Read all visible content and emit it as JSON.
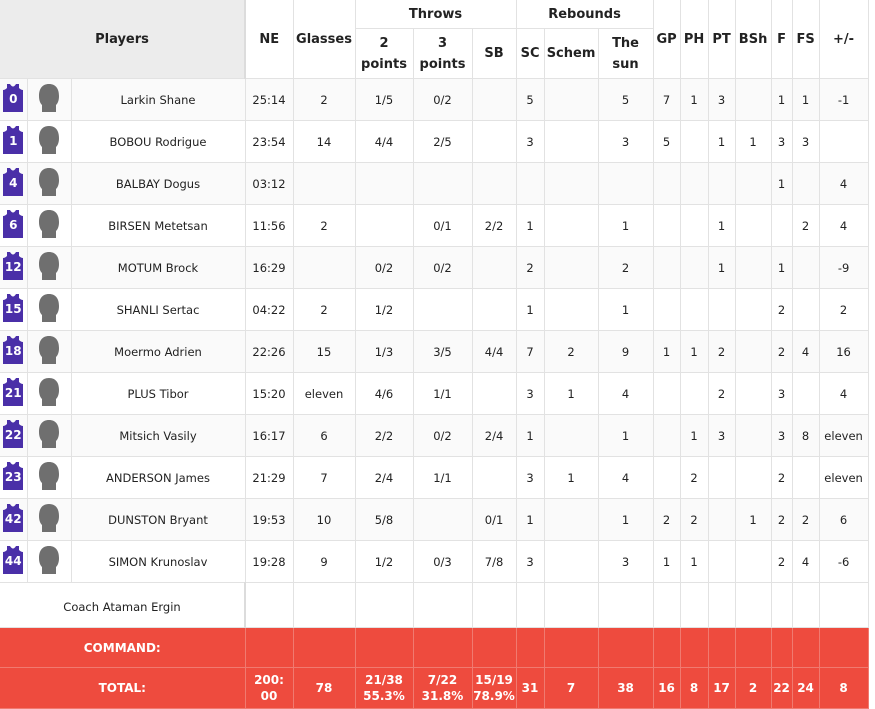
{
  "header": {
    "players": "Players",
    "ne": "NE",
    "glasses": "Glasses",
    "throws": "Throws",
    "two_points": "2 points",
    "three_points": "3 points",
    "sb": "SB",
    "rebounds": "Rebounds",
    "sc": "SC",
    "schem": "Schem",
    "the_sun": "The sun",
    "gp": "GP",
    "ph": "PH",
    "pt": "PT",
    "bsh": "BSh",
    "f": "F",
    "fs": "FS",
    "pm": "+/-"
  },
  "colors": {
    "jersey": "#4a2fa8",
    "team_row": "#ee4b3e",
    "avatar": "#6f6f6f"
  },
  "players": [
    {
      "num": "0",
      "name": "Larkin Shane",
      "ne": "25:14",
      "glasses": "2",
      "p2": "1/5",
      "p3": "0/2",
      "sb": "",
      "sc": "5",
      "schem": "",
      "sun": "5",
      "gp": "7",
      "ph": "1",
      "pt": "3",
      "bsh": "",
      "f": "1",
      "fs": "1",
      "pm": "-1"
    },
    {
      "num": "1",
      "name": "BOBOU Rodrigue",
      "ne": "23:54",
      "glasses": "14",
      "p2": "4/4",
      "p3": "2/5",
      "sb": "",
      "sc": "3",
      "schem": "",
      "sun": "3",
      "gp": "5",
      "ph": "",
      "pt": "1",
      "bsh": "1",
      "f": "3",
      "fs": "3",
      "pm": ""
    },
    {
      "num": "4",
      "name": "BALBAY Dogus",
      "ne": "03:12",
      "glasses": "",
      "p2": "",
      "p3": "",
      "sb": "",
      "sc": "",
      "schem": "",
      "sun": "",
      "gp": "",
      "ph": "",
      "pt": "",
      "bsh": "",
      "f": "1",
      "fs": "",
      "pm": "4"
    },
    {
      "num": "6",
      "name": "BIRSEN Metetsan",
      "ne": "11:56",
      "glasses": "2",
      "p2": "",
      "p3": "0/1",
      "sb": "2/2",
      "sc": "1",
      "schem": "",
      "sun": "1",
      "gp": "",
      "ph": "",
      "pt": "1",
      "bsh": "",
      "f": "",
      "fs": "2",
      "pm": "4"
    },
    {
      "num": "12",
      "name": "MOTUM Brock",
      "ne": "16:29",
      "glasses": "",
      "p2": "0/2",
      "p3": "0/2",
      "sb": "",
      "sc": "2",
      "schem": "",
      "sun": "2",
      "gp": "",
      "ph": "",
      "pt": "1",
      "bsh": "",
      "f": "1",
      "fs": "",
      "pm": "-9"
    },
    {
      "num": "15",
      "name": "SHANLI Sertac",
      "ne": "04:22",
      "glasses": "2",
      "p2": "1/2",
      "p3": "",
      "sb": "",
      "sc": "1",
      "schem": "",
      "sun": "1",
      "gp": "",
      "ph": "",
      "pt": "",
      "bsh": "",
      "f": "2",
      "fs": "",
      "pm": "2"
    },
    {
      "num": "18",
      "name": "Moermo Adrien",
      "ne": "22:26",
      "glasses": "15",
      "p2": "1/3",
      "p3": "3/5",
      "sb": "4/4",
      "sc": "7",
      "schem": "2",
      "sun": "9",
      "gp": "1",
      "ph": "1",
      "pt": "2",
      "bsh": "",
      "f": "2",
      "fs": "4",
      "pm": "16"
    },
    {
      "num": "21",
      "name": "PLUS Tibor",
      "ne": "15:20",
      "glasses": "eleven",
      "p2": "4/6",
      "p3": "1/1",
      "sb": "",
      "sc": "3",
      "schem": "1",
      "sun": "4",
      "gp": "",
      "ph": "",
      "pt": "2",
      "bsh": "",
      "f": "3",
      "fs": "",
      "pm": "4"
    },
    {
      "num": "22",
      "name": "Mitsich Vasily",
      "ne": "16:17",
      "glasses": "6",
      "p2": "2/2",
      "p3": "0/2",
      "sb": "2/4",
      "sc": "1",
      "schem": "",
      "sun": "1",
      "gp": "",
      "ph": "1",
      "pt": "3",
      "bsh": "",
      "f": "3",
      "fs": "8",
      "pm": "eleven"
    },
    {
      "num": "23",
      "name": "ANDERSON James",
      "ne": "21:29",
      "glasses": "7",
      "p2": "2/4",
      "p3": "1/1",
      "sb": "",
      "sc": "3",
      "schem": "1",
      "sun": "4",
      "gp": "",
      "ph": "2",
      "pt": "",
      "bsh": "",
      "f": "2",
      "fs": "",
      "pm": "eleven"
    },
    {
      "num": "42",
      "name": "DUNSTON Bryant",
      "ne": "19:53",
      "glasses": "10",
      "p2": "5/8",
      "p3": "",
      "sb": "0/1",
      "sc": "1",
      "schem": "",
      "sun": "1",
      "gp": "2",
      "ph": "2",
      "pt": "",
      "bsh": "1",
      "f": "2",
      "fs": "2",
      "pm": "6"
    },
    {
      "num": "44",
      "name": "SIMON Krunoslav",
      "ne": "19:28",
      "glasses": "9",
      "p2": "1/2",
      "p3": "0/3",
      "sb": "7/8",
      "sc": "3",
      "schem": "",
      "sun": "3",
      "gp": "1",
      "ph": "1",
      "pt": "",
      "bsh": "",
      "f": "2",
      "fs": "4",
      "pm": "-6"
    }
  ],
  "coach": {
    "label": "Coach",
    "name": "Ataman Ergin"
  },
  "team": {
    "label": "COMMAND:"
  },
  "total": {
    "label": "TOTAL:",
    "ne_1": "200:",
    "ne_2": "00",
    "glasses": "78",
    "p2": "21/38",
    "p2_pct": "55.3%",
    "p3": "7/22",
    "p3_pct": "31.8%",
    "sb": "15/19",
    "sb_pct": "78.9%",
    "sc": "31",
    "schem": "7",
    "sun": "38",
    "gp": "16",
    "ph": "8",
    "pt": "17",
    "bsh": "2",
    "f": "22",
    "fs": "24",
    "pm": "8"
  }
}
